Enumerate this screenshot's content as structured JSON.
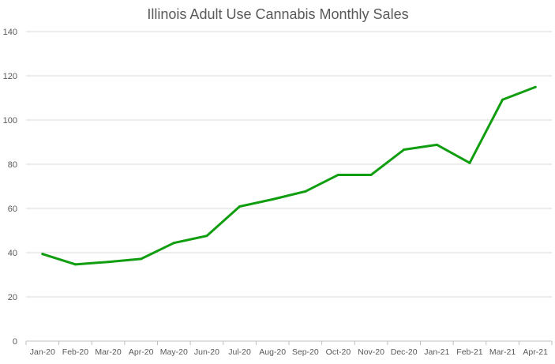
{
  "chart_data": {
    "type": "line",
    "title": "Illinois Adult Use Cannabis Monthly Sales",
    "xlabel": "",
    "ylabel": "",
    "ylim": [
      0,
      140
    ],
    "yticks": [
      "0",
      "20",
      "40",
      "60",
      "80",
      "100",
      "120",
      "140"
    ],
    "grid": true,
    "legend": "none",
    "categories": [
      "Jan-20",
      "Feb-20",
      "Mar-20",
      "Apr-20",
      "May-20",
      "Jun-20",
      "Jul-20",
      "Aug-20",
      "Sep-20",
      "Oct-20",
      "Nov-20",
      "Dec-20",
      "Jan-21",
      "Feb-21",
      "Mar-21",
      "Apr-21"
    ],
    "series": [
      {
        "name": "Monthly Sales",
        "color": "#109e10",
        "values": [
          39.4,
          34.7,
          35.8,
          37.2,
          44.4,
          47.6,
          60.9,
          64.1,
          67.7,
          75.2,
          75.2,
          86.6,
          88.8,
          80.6,
          109.2,
          114.9
        ]
      }
    ]
  }
}
